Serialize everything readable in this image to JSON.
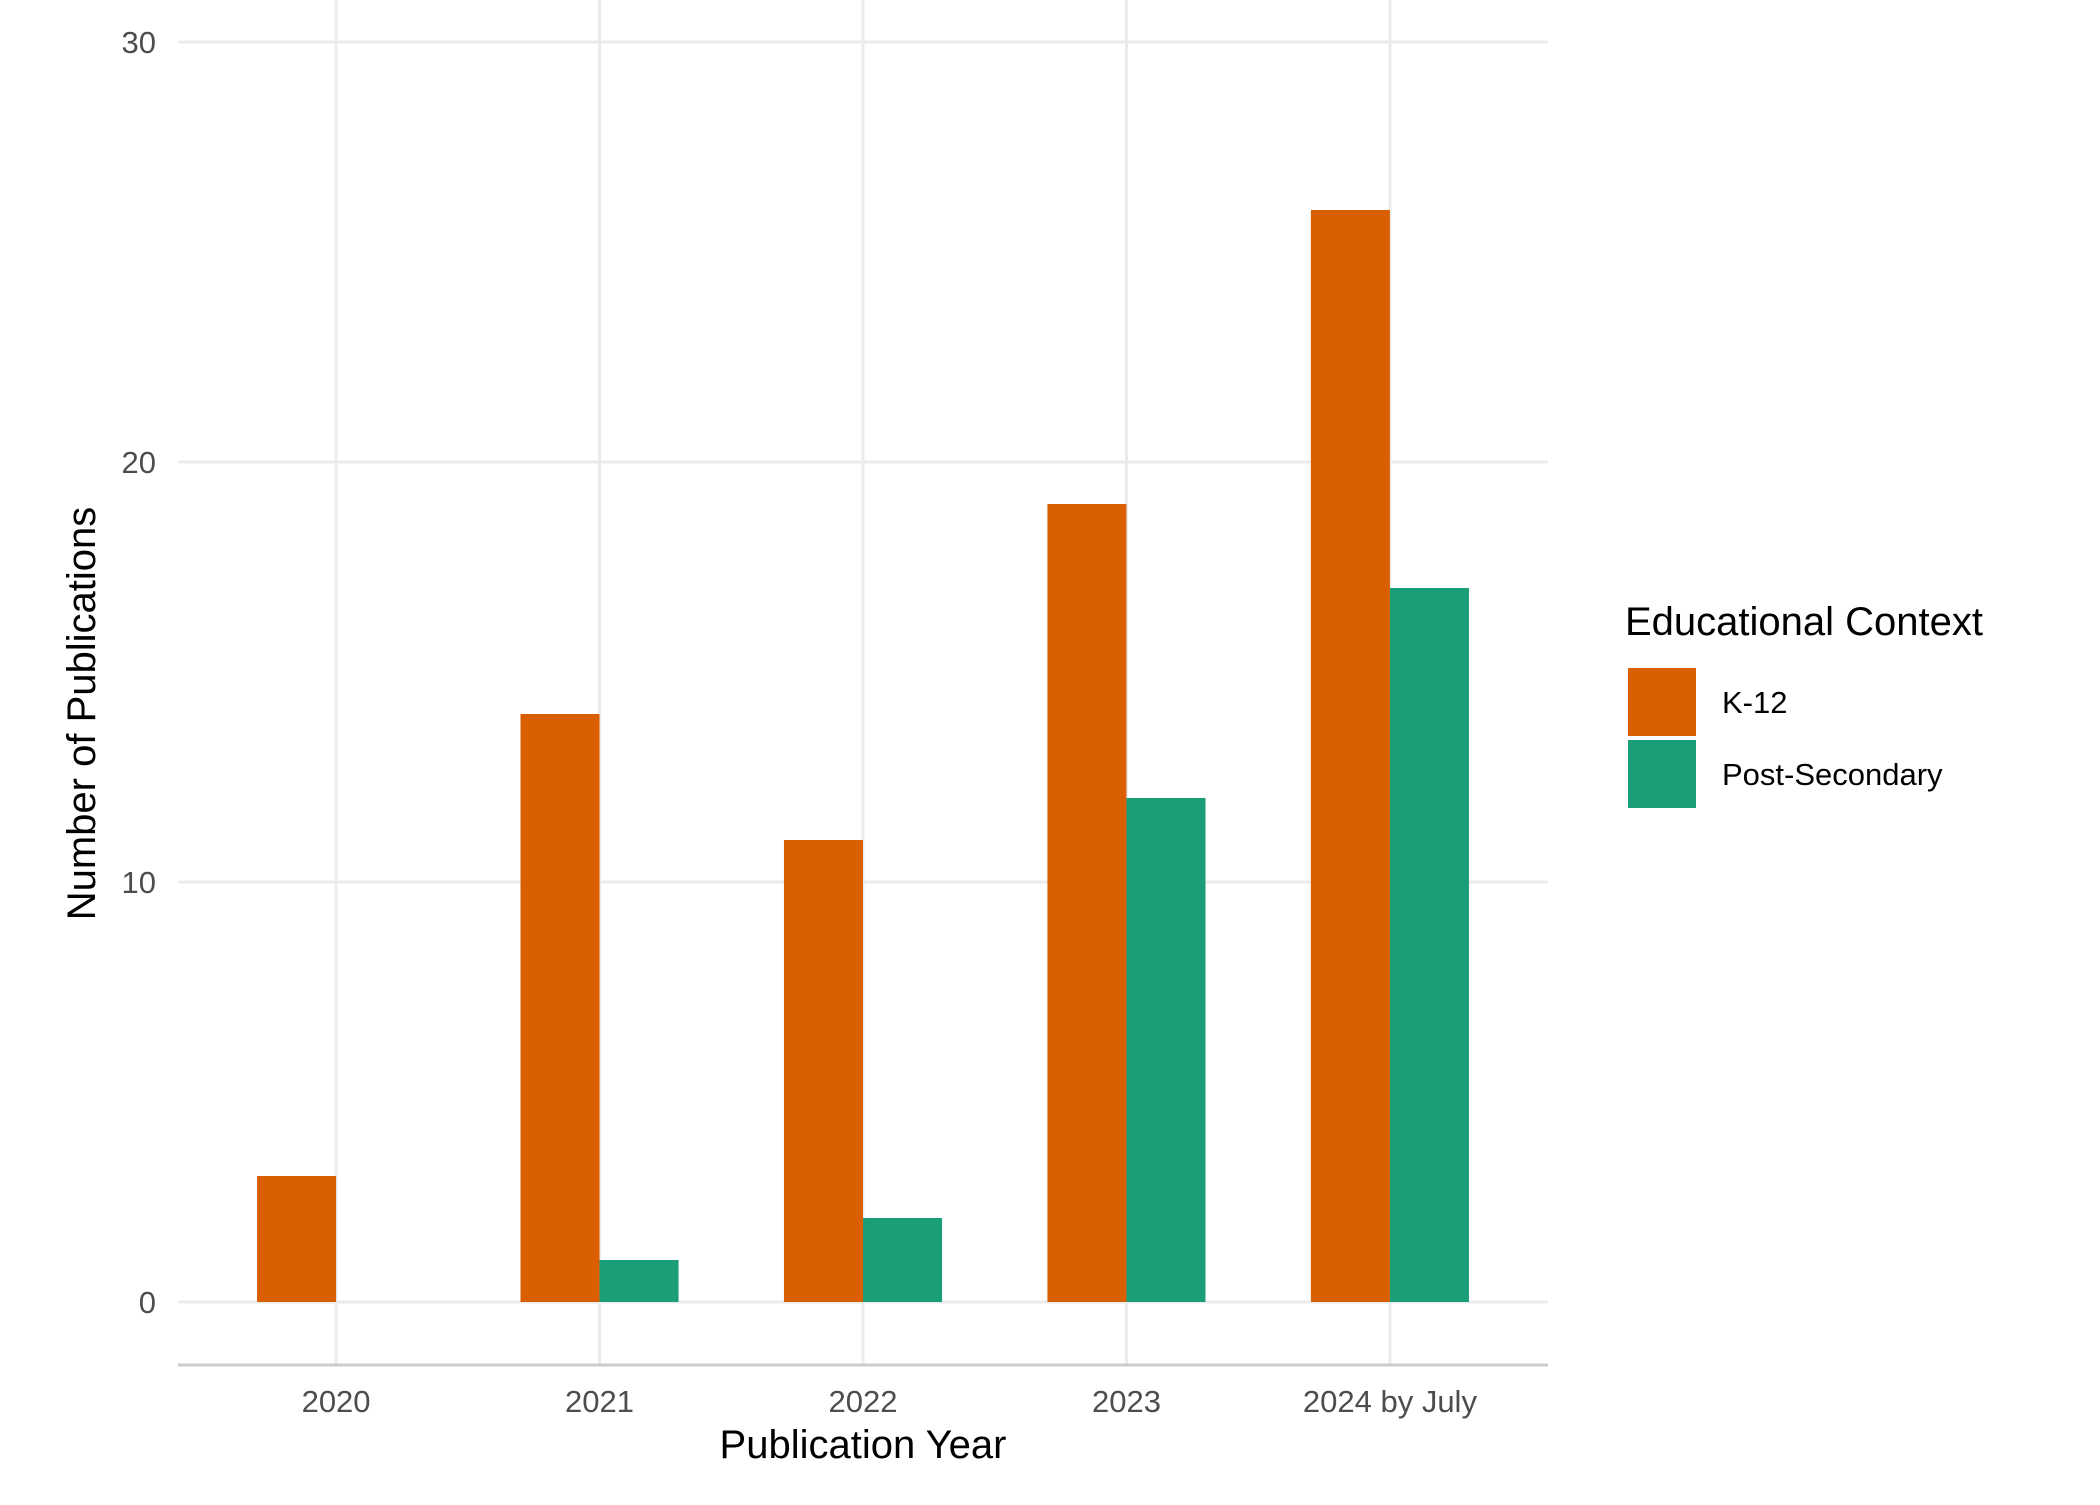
{
  "chart_data": {
    "type": "bar",
    "title": "",
    "xlabel": "Publication Year",
    "ylabel": "Number of Publications",
    "categories": [
      "2020",
      "2021",
      "2022",
      "2023",
      "2024 by July"
    ],
    "series": [
      {
        "name": "K-12",
        "values": [
          3,
          14,
          11,
          19,
          26
        ],
        "color": "#D95F02"
      },
      {
        "name": "Post-Secondary",
        "values": [
          0,
          1,
          2,
          12,
          17
        ],
        "color": "#1B9E77"
      }
    ],
    "ylim": [
      -1.5,
      30
    ],
    "yticks": [
      0,
      10,
      20,
      30
    ],
    "grid": true,
    "legend": {
      "title": "Educational Context",
      "placement": "right"
    }
  }
}
